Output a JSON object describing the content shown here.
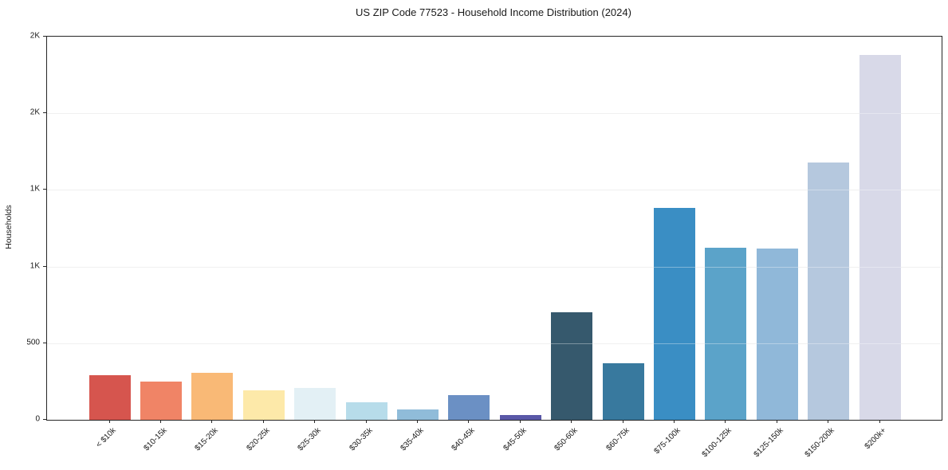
{
  "chart_data": {
    "type": "bar",
    "title": "US ZIP Code 77523 - Household Income Distribution (2024)",
    "xlabel": "",
    "ylabel": "Households",
    "categories": [
      "< $10k",
      "$10-15k",
      "$15-20k",
      "$20-25k",
      "$25-30k",
      "$30-35k",
      "$35-40k",
      "$40-45k",
      "$45-50k",
      "$50-60k",
      "$60-75k",
      "$75-100k",
      "$100-125k",
      "$125-150k",
      "$150-200k",
      "$200k+"
    ],
    "values": [
      290,
      250,
      305,
      190,
      210,
      115,
      70,
      160,
      30,
      700,
      370,
      1380,
      1125,
      1115,
      1680,
      2380
    ],
    "bar_colors": [
      "#d6554e",
      "#f08466",
      "#f9b976",
      "#fde9a9",
      "#e3f0f5",
      "#b7dcea",
      "#90bcd9",
      "#6b90c4",
      "#5a58a8",
      "#36596d",
      "#38799e",
      "#3a8ec4",
      "#5ba3c9",
      "#90b8d9",
      "#b5c8de",
      "#d8d9e8"
    ],
    "ylim": [
      0,
      2500
    ],
    "yticks": [
      {
        "value": 0,
        "label": "0"
      },
      {
        "value": 500,
        "label": "500"
      },
      {
        "value": 1000,
        "label": "1K"
      },
      {
        "value": 1500,
        "label": "1K"
      },
      {
        "value": 2000,
        "label": "2K"
      },
      {
        "value": 2500,
        "label": "2K"
      }
    ],
    "grid": "horizontal",
    "legend_position": "none",
    "grid_color": "#e8e8e8",
    "spine_color": "#262626",
    "text_color": "#1a1a1a",
    "background_color": "#ffffff"
  }
}
